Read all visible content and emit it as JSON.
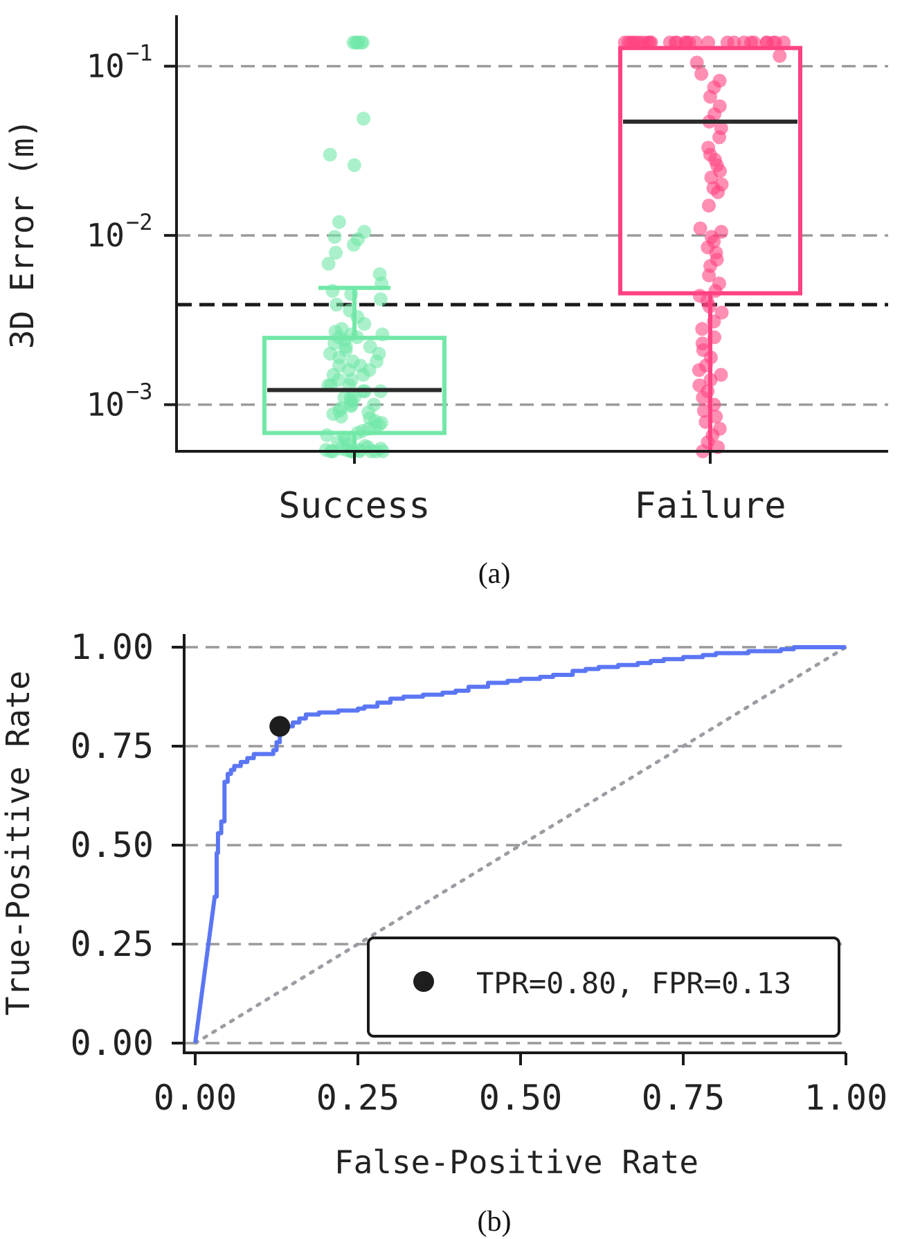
{
  "chart_data": [
    {
      "type": "box",
      "panel_label": "(a)",
      "ylabel": "3D Error (m)",
      "yscale": "log",
      "ylim": [
        0.00053,
        0.2
      ],
      "yticks": [
        {
          "value": 0.001,
          "base": "10",
          "exp": "−3"
        },
        {
          "value": 0.01,
          "base": "10",
          "exp": "−2"
        },
        {
          "value": 0.1,
          "base": "10",
          "exp": "−1"
        }
      ],
      "grid": "horizontal dashed",
      "threshold": 0.0039,
      "categories": [
        "Success",
        "Failure"
      ],
      "colors": {
        "Success": "#72e8a8",
        "Failure": "#ff4281",
        "median": "#2a2a2a",
        "threshold": "#1a1a1a",
        "grid": "#9a9a9a"
      },
      "boxes": [
        {
          "category": "Success",
          "q1": 0.00068,
          "median": 0.00122,
          "q3": 0.00248,
          "whisker_low": 0.00053,
          "whisker_high": 0.0049
        },
        {
          "category": "Failure",
          "q1": 0.00455,
          "median": 0.047,
          "q3": 0.128,
          "whisker_low": 0.00053,
          "whisker_high": 0.128
        }
      ],
      "points": {
        "Success": [
          0.138,
          0.138,
          0.138,
          0.138,
          0.138,
          0.138,
          0.049,
          0.03,
          0.026,
          0.012,
          0.0105,
          0.0098,
          0.0095,
          0.0088,
          0.0079,
          0.0068,
          0.0059,
          0.0052,
          0.0047,
          0.0045,
          0.0042,
          0.0039,
          0.0036,
          0.0033,
          0.003,
          0.0028,
          0.0027,
          0.0026,
          0.0026,
          0.0025,
          0.0025,
          0.0024,
          0.0023,
          0.0022,
          0.0022,
          0.0021,
          0.002,
          0.002,
          0.0019,
          0.0018,
          0.0018,
          0.0017,
          0.0017,
          0.0016,
          0.0016,
          0.0015,
          0.0015,
          0.0014,
          0.0014,
          0.0013,
          0.0013,
          0.0013,
          0.0012,
          0.0012,
          0.0012,
          0.0011,
          0.0011,
          0.0011,
          0.00105,
          0.001,
          0.001,
          0.00098,
          0.00095,
          0.00092,
          0.0009,
          0.00088,
          0.00085,
          0.00083,
          0.0008,
          0.00078,
          0.00076,
          0.00074,
          0.00072,
          0.0007,
          0.00068,
          0.00066,
          0.00064,
          0.00062,
          0.0006,
          0.00058,
          0.00057,
          0.00056,
          0.00055,
          0.00055,
          0.00054,
          0.00054,
          0.00054,
          0.00053,
          0.00053,
          0.00053,
          0.00053,
          0.00053,
          0.00053,
          0.00053,
          0.00053,
          0.00053
        ],
        "Failure": [
          0.138,
          0.138,
          0.138,
          0.138,
          0.138,
          0.138,
          0.138,
          0.138,
          0.138,
          0.138,
          0.138,
          0.138,
          0.138,
          0.138,
          0.138,
          0.138,
          0.138,
          0.138,
          0.138,
          0.138,
          0.138,
          0.138,
          0.138,
          0.138,
          0.138,
          0.138,
          0.138,
          0.138,
          0.115,
          0.105,
          0.09,
          0.082,
          0.075,
          0.066,
          0.058,
          0.052,
          0.047,
          0.043,
          0.038,
          0.033,
          0.03,
          0.028,
          0.026,
          0.024,
          0.022,
          0.02,
          0.019,
          0.018,
          0.015,
          0.011,
          0.0105,
          0.0098,
          0.0092,
          0.0085,
          0.0079,
          0.0072,
          0.0066,
          0.0058,
          0.0052,
          0.0047,
          0.0044,
          0.0041,
          0.0038,
          0.0035,
          0.0031,
          0.0028,
          0.0025,
          0.0023,
          0.0021,
          0.0019,
          0.0017,
          0.0016,
          0.0015,
          0.0014,
          0.0013,
          0.0012,
          0.0011,
          0.001,
          0.00092,
          0.00085,
          0.00079,
          0.00072,
          0.00066,
          0.0006,
          0.00056,
          0.00053
        ]
      }
    },
    {
      "type": "line",
      "panel_label": "(b)",
      "xlabel": "False-Positive Rate",
      "ylabel": "True-Positive Rate",
      "xlim": [
        0,
        1
      ],
      "ylim": [
        0,
        1
      ],
      "xticks": [
        "0.00",
        "0.25",
        "0.50",
        "0.75",
        "1.00"
      ],
      "yticks": [
        "0.00",
        "0.25",
        "0.50",
        "0.75",
        "1.00"
      ],
      "grid": "horizontal dashed",
      "colors": {
        "roc": "#5b76f3",
        "diagonal": "#9a9ea3",
        "point": "#1e1e1e",
        "grid": "#9a9a9a"
      },
      "series": [
        {
          "x": [
            0.0,
            0.03,
            0.033,
            0.035,
            0.035,
            0.04,
            0.04,
            0.045,
            0.045,
            0.05,
            0.05,
            0.055,
            0.06,
            0.07,
            0.08,
            0.09,
            0.12,
            0.125,
            0.13,
            0.14,
            0.15,
            0.16,
            0.17,
            0.19,
            0.22,
            0.25,
            0.26,
            0.28,
            0.3,
            0.32,
            0.35,
            0.38,
            0.4,
            0.42,
            0.45,
            0.48,
            0.5,
            0.53,
            0.55,
            0.58,
            0.6,
            0.62,
            0.65,
            0.68,
            0.7,
            0.72,
            0.75,
            0.78,
            0.8,
            0.85,
            0.9,
            0.92,
            0.95,
            1.0
          ],
          "y": [
            0.0,
            0.37,
            0.48,
            0.5,
            0.53,
            0.55,
            0.56,
            0.57,
            0.66,
            0.67,
            0.68,
            0.69,
            0.7,
            0.71,
            0.72,
            0.73,
            0.74,
            0.76,
            0.79,
            0.8,
            0.81,
            0.82,
            0.83,
            0.835,
            0.84,
            0.845,
            0.85,
            0.86,
            0.87,
            0.875,
            0.88,
            0.885,
            0.89,
            0.9,
            0.91,
            0.915,
            0.92,
            0.925,
            0.93,
            0.94,
            0.945,
            0.95,
            0.955,
            0.96,
            0.965,
            0.97,
            0.975,
            0.98,
            0.985,
            0.99,
            0.995,
            1.0,
            1.0,
            1.0
          ]
        }
      ],
      "reference_line": {
        "x": [
          0,
          1
        ],
        "y": [
          0,
          1
        ]
      },
      "operating_point": {
        "x": 0.13,
        "y": 0.8
      },
      "legend": {
        "placement": "lower-right",
        "label": "TPR=0.80, FPR=0.13"
      }
    }
  ]
}
